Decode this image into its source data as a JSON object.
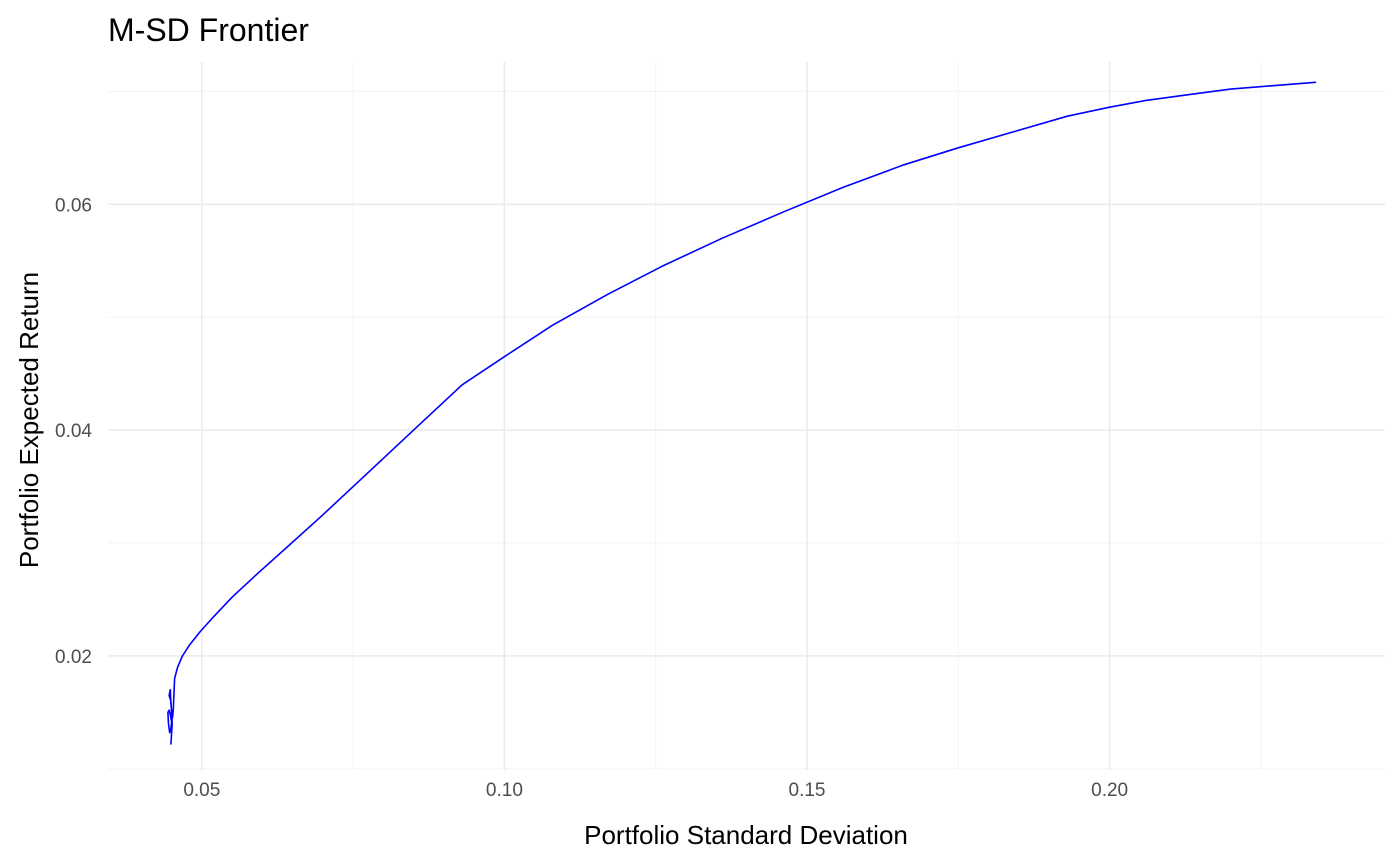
{
  "chart_data": {
    "type": "line",
    "title": "M-SD Frontier",
    "xlabel": "Portfolio Standard Deviation",
    "ylabel": "Portfolio Expected Return",
    "xlim": [
      0.0345,
      0.2455
    ],
    "ylim": [
      0.0099,
      0.0726
    ],
    "x_ticks": [
      0.05,
      0.1,
      0.15,
      0.2
    ],
    "x_tick_labels": [
      "0.05",
      "0.10",
      "0.15",
      "0.20"
    ],
    "x_minor_ticks": [
      0.075,
      0.125,
      0.175,
      0.225
    ],
    "y_ticks": [
      0.02,
      0.04,
      0.06
    ],
    "y_tick_labels": [
      "0.02",
      "0.04",
      "0.06"
    ],
    "y_minor_ticks": [
      0.01,
      0.03,
      0.05,
      0.07
    ],
    "grid": true,
    "line_color": "#0000ff",
    "series": [
      {
        "x": [
          0.0449,
          0.0451,
          0.0449,
          0.0446,
          0.0448,
          0.0449,
          0.0451,
          0.0449,
          0.0447,
          0.0445,
          0.0444,
          0.0446,
          0.0448,
          0.045,
          0.0452,
          0.0453,
          0.0455,
          0.046,
          0.0468,
          0.048,
          0.0498,
          0.052,
          0.055,
          0.059,
          0.064,
          0.07,
          0.077,
          0.085,
          0.093,
          0.1,
          0.108,
          0.117,
          0.126,
          0.136,
          0.146,
          0.156,
          0.166,
          0.175,
          0.184,
          0.193,
          0.2,
          0.206,
          0.213,
          0.22,
          0.227,
          0.234
        ],
        "y": [
          0.0122,
          0.014,
          0.016,
          0.0165,
          0.017,
          0.0158,
          0.0145,
          0.0136,
          0.0132,
          0.014,
          0.015,
          0.0152,
          0.0148,
          0.0142,
          0.0147,
          0.0155,
          0.018,
          0.019,
          0.02,
          0.021,
          0.0222,
          0.0235,
          0.0252,
          0.0272,
          0.0296,
          0.0325,
          0.036,
          0.04,
          0.044,
          0.0465,
          0.0493,
          0.052,
          0.0545,
          0.057,
          0.0593,
          0.0615,
          0.0635,
          0.065,
          0.0664,
          0.0678,
          0.0686,
          0.0692,
          0.0697,
          0.0702,
          0.0705,
          0.0708
        ]
      }
    ]
  }
}
